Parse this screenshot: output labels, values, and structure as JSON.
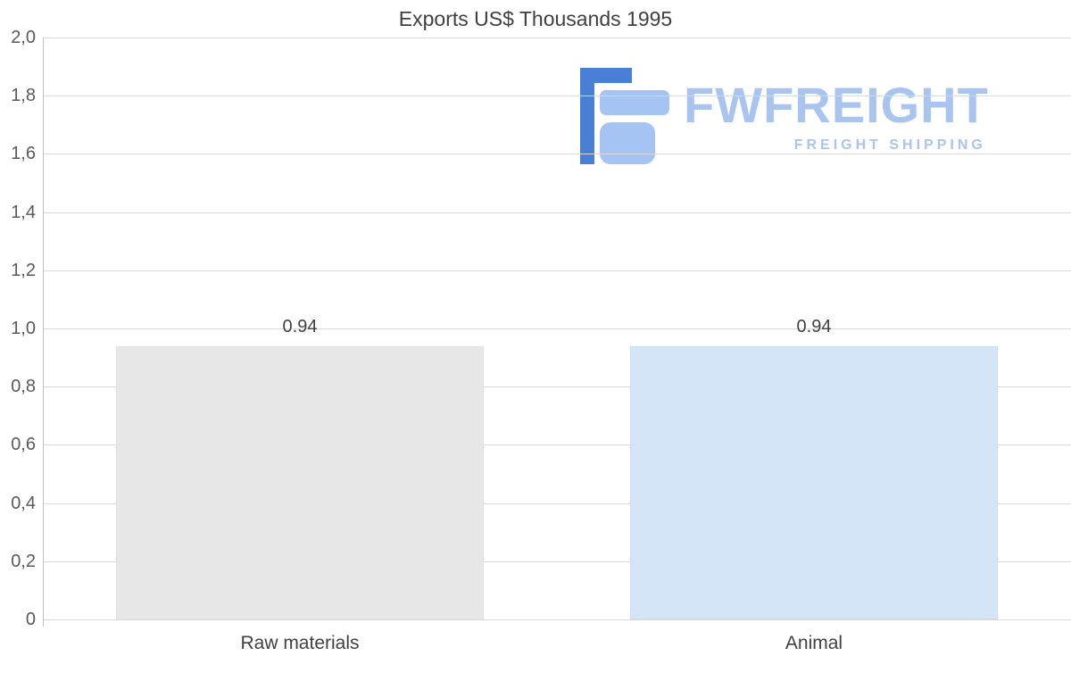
{
  "chart_data": {
    "type": "bar",
    "title": "Exports US$ Thousands 1995",
    "categories": [
      "Raw materials",
      "Animal"
    ],
    "values": [
      0.94,
      0.94
    ],
    "value_labels": [
      "0.94",
      "0.94"
    ],
    "bar_colors": [
      "#e7e7e7",
      "#d3e5f6"
    ],
    "bar_border_colors": [
      "#e2e2e2",
      "#c6ddf2"
    ],
    "xlabel": "",
    "ylabel": "",
    "ylim": [
      0,
      2
    ],
    "ytick_step": 0.2,
    "ytick_labels": [
      "0",
      "0,2",
      "0,4",
      "0,6",
      "0,8",
      "1,0",
      "1,2",
      "1,4",
      "1,6",
      "1,8",
      "2,0"
    ],
    "grid": true,
    "legend": false
  },
  "colors": {
    "title_text": "#404040",
    "tick_text": "#595959",
    "category_text": "#404040",
    "value_text": "#404040",
    "grid": "#d9d9d9",
    "axis": "#bfbfbf",
    "background": "#ffffff",
    "logo_light_blue": "#a6c4f3",
    "logo_dark_blue": "#4a7fd6",
    "watermark_text": "#a9c5ef"
  },
  "watermark": {
    "brand": "FWFREIGHT",
    "tagline": "FREIGHT SHIPPING"
  }
}
